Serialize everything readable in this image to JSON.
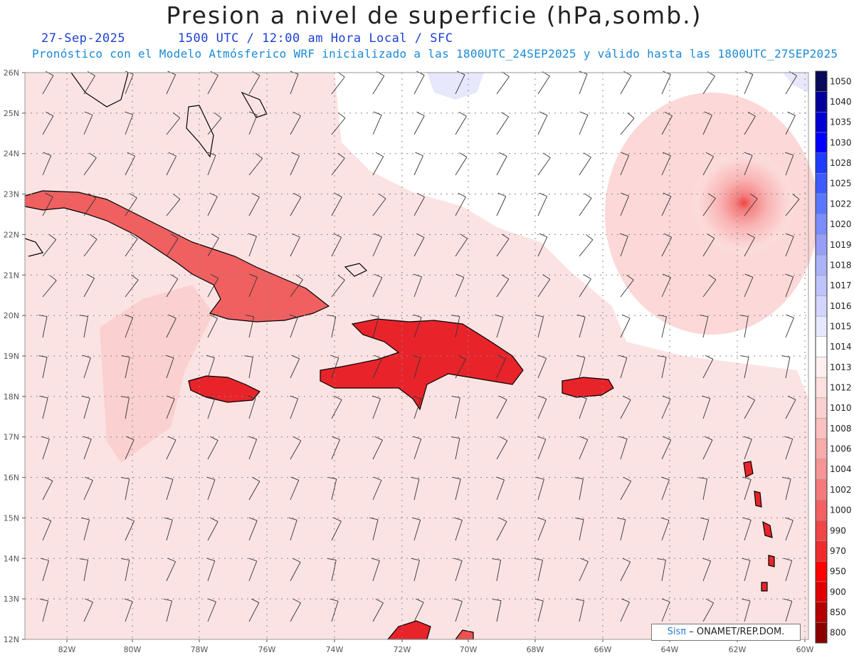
{
  "header": {
    "title": "Presion a nivel de superficie (hPa,somb.)",
    "date": "27-Sep-2025",
    "valid_time": "1500 UTC / 12:00 am Hora Local / SFC",
    "description": "Pronóstico con el Modelo Atmósferico WRF inicializado a las 1800UTC_24SEP2025 y válido hasta las  1800UTC_27SEP2025"
  },
  "map": {
    "lat_labels": [
      "26N",
      "25N",
      "24N",
      "23N",
      "22N",
      "21N",
      "20N",
      "19N",
      "18N",
      "17N",
      "16N",
      "15N",
      "14N",
      "13N",
      "12N"
    ],
    "lon_labels": [
      "82W",
      "80W",
      "78W",
      "76W",
      "74W",
      "72W",
      "70W",
      "68W",
      "66W",
      "64W",
      "62W",
      "60W"
    ],
    "colors": {
      "grid": "#888888",
      "coast": "#000000",
      "ocean_fill": "#fce3e3",
      "land_fill": "#e8242a",
      "high_pressure": "#e8e8fc"
    }
  },
  "colorbar": {
    "levels": [
      "1050",
      "1040",
      "1035",
      "1030",
      "1028",
      "1025",
      "1022",
      "1020",
      "1019",
      "1018",
      "1017",
      "1016",
      "1015",
      "1014",
      "1013",
      "1012",
      "1010",
      "1008",
      "1006",
      "1004",
      "1002",
      "1000",
      "990",
      "970",
      "950",
      "900",
      "850",
      "800"
    ],
    "colors": [
      "#0a0a5a",
      "#00009b",
      "#0000d2",
      "#0000ff",
      "#1e3cff",
      "#3c5aff",
      "#5a78ff",
      "#7a8cff",
      "#969ef6",
      "#aab2f8",
      "#bec4fa",
      "#d2d6fc",
      "#e6e8fe",
      "#ffffff",
      "#fff0f0",
      "#fde0e0",
      "#fcd0d0",
      "#fbc0c0",
      "#f9aaaa",
      "#f79494",
      "#f57a7a",
      "#f26060",
      "#f04646",
      "#ee2c2c",
      "#ff0000",
      "#e00000",
      "#b40000",
      "#8c0000"
    ]
  },
  "footer": {
    "credit_brand": "Sisπ",
    "credit_org": "– ONAMET/REP.DOM."
  }
}
